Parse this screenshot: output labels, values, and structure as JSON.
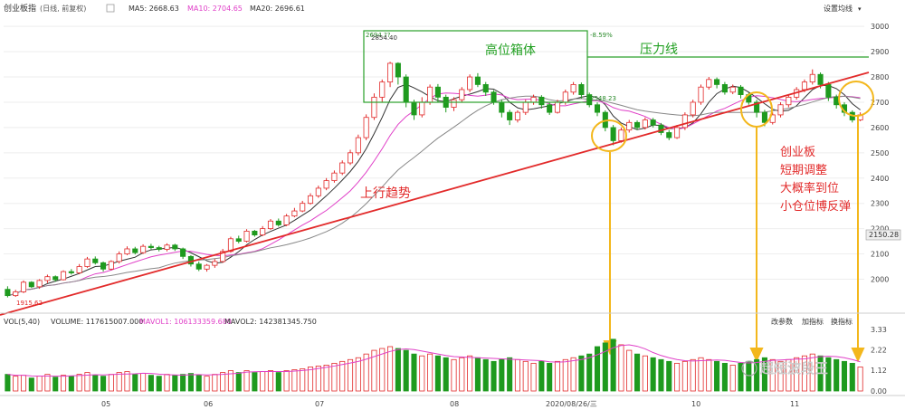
{
  "header": {
    "index_name": "创业板指",
    "period_tag": "(日线, 前复权)",
    "ma5": "MA5: 2668.63",
    "ma10": "MA10: 2704.65",
    "ma20": "MA20: 2696.61",
    "settings_label": "设置均线"
  },
  "volume_header": {
    "vol_title": "VOL(5,40)",
    "volume": "VOLUME: 117615007.000",
    "mavol1": "MAVOL1: 106133359.680",
    "mavol2": "MAVOL2: 142381345.750",
    "btn_params": "改参数",
    "btn_add": "加指标",
    "btn_switch": "换指标"
  },
  "annotations": {
    "box_label": "高位箱体",
    "resistance_label": "压力线",
    "trend_label": "上行趋势",
    "note_lines": [
      "创业板",
      "短期调整",
      "大概率到位",
      "小仓位博反弹"
    ],
    "box_top_price": "2854.40",
    "box_top_pct": "-8.59%",
    "box_corner_price": "2694.??",
    "low_price": "1915.62",
    "mid_low_price": "2548.23",
    "current_price": "2150.28"
  },
  "watermark": "超短波段王",
  "chart_data": {
    "type": "candlestick",
    "y_axis_price": [
      3000,
      2900,
      2800,
      2700,
      2600,
      2500,
      2400,
      2300,
      2200,
      2100,
      2000
    ],
    "ylim_price": [
      1880,
      3040
    ],
    "y_axis_volume": [
      "3.33",
      "2.22",
      "1.12",
      "0.00"
    ],
    "x_labels": [
      "05",
      "06",
      "07",
      "08",
      "2020/08/26/三",
      "10",
      "11"
    ],
    "candles": [
      [
        1960,
        1935,
        1972,
        1928
      ],
      [
        1935,
        1950,
        1958,
        1930
      ],
      [
        1950,
        1988,
        1995,
        1945
      ],
      [
        1988,
        1970,
        1992,
        1965
      ],
      [
        1970,
        1995,
        2000,
        1962
      ],
      [
        1995,
        2010,
        2018,
        1985
      ],
      [
        2010,
        1998,
        2015,
        1990
      ],
      [
        1998,
        2030,
        2035,
        1995
      ],
      [
        2030,
        2025,
        2040,
        2018
      ],
      [
        2025,
        2050,
        2060,
        2020
      ],
      [
        2050,
        2080,
        2088,
        2045
      ],
      [
        2080,
        2065,
        2090,
        2058
      ],
      [
        2065,
        2040,
        2070,
        2030
      ],
      [
        2040,
        2070,
        2075,
        2035
      ],
      [
        2070,
        2100,
        2110,
        2062
      ],
      [
        2100,
        2120,
        2130,
        2095
      ],
      [
        2120,
        2105,
        2128,
        2098
      ],
      [
        2105,
        2130,
        2138,
        2100
      ],
      [
        2130,
        2125,
        2140,
        2118
      ],
      [
        2125,
        2118,
        2132,
        2110
      ],
      [
        2118,
        2135,
        2142,
        2110
      ],
      [
        2135,
        2120,
        2140,
        2112
      ],
      [
        2120,
        2090,
        2125,
        2080
      ],
      [
        2090,
        2060,
        2095,
        2050
      ],
      [
        2060,
        2040,
        2070,
        2032
      ],
      [
        2040,
        2055,
        2060,
        2030
      ],
      [
        2055,
        2070,
        2080,
        2045
      ],
      [
        2070,
        2110,
        2120,
        2065
      ],
      [
        2110,
        2160,
        2168,
        2105
      ],
      [
        2160,
        2150,
        2172,
        2142
      ],
      [
        2150,
        2190,
        2198,
        2145
      ],
      [
        2190,
        2175,
        2195,
        2168
      ],
      [
        2175,
        2200,
        2210,
        2170
      ],
      [
        2200,
        2230,
        2238,
        2195
      ],
      [
        2230,
        2215,
        2240,
        2208
      ],
      [
        2215,
        2250,
        2258,
        2210
      ],
      [
        2250,
        2270,
        2282,
        2245
      ],
      [
        2270,
        2300,
        2310,
        2265
      ],
      [
        2300,
        2330,
        2340,
        2295
      ],
      [
        2330,
        2360,
        2370,
        2322
      ],
      [
        2360,
        2390,
        2400,
        2352
      ],
      [
        2390,
        2420,
        2430,
        2382
      ],
      [
        2420,
        2460,
        2470,
        2412
      ],
      [
        2460,
        2500,
        2512,
        2452
      ],
      [
        2500,
        2560,
        2572,
        2490
      ],
      [
        2560,
        2640,
        2652,
        2550
      ],
      [
        2640,
        2720,
        2735,
        2630
      ],
      [
        2720,
        2780,
        2790,
        2700
      ],
      [
        2780,
        2854,
        2860,
        2760
      ],
      [
        2854,
        2800,
        2858,
        2770
      ],
      [
        2800,
        2700,
        2810,
        2680
      ],
      [
        2700,
        2650,
        2710,
        2630
      ],
      [
        2650,
        2700,
        2720,
        2640
      ],
      [
        2700,
        2760,
        2770,
        2690
      ],
      [
        2760,
        2720,
        2772,
        2700
      ],
      [
        2720,
        2680,
        2730,
        2660
      ],
      [
        2680,
        2710,
        2720,
        2665
      ],
      [
        2710,
        2750,
        2760,
        2700
      ],
      [
        2750,
        2800,
        2810,
        2740
      ],
      [
        2800,
        2770,
        2815,
        2760
      ],
      [
        2770,
        2740,
        2780,
        2725
      ],
      [
        2740,
        2700,
        2748,
        2690
      ],
      [
        2700,
        2660,
        2710,
        2640
      ],
      [
        2660,
        2630,
        2670,
        2610
      ],
      [
        2630,
        2660,
        2668,
        2620
      ],
      [
        2660,
        2700,
        2710,
        2650
      ],
      [
        2700,
        2720,
        2730,
        2690
      ],
      [
        2720,
        2690,
        2728,
        2675
      ],
      [
        2690,
        2660,
        2700,
        2650
      ],
      [
        2660,
        2700,
        2710,
        2655
      ],
      [
        2700,
        2740,
        2750,
        2690
      ],
      [
        2740,
        2770,
        2780,
        2730
      ],
      [
        2770,
        2730,
        2778,
        2715
      ],
      [
        2730,
        2690,
        2738,
        2680
      ],
      [
        2690,
        2660,
        2700,
        2645
      ],
      [
        2660,
        2600,
        2668,
        2585
      ],
      [
        2600,
        2548,
        2610,
        2530
      ],
      [
        2548,
        2590,
        2600,
        2540
      ],
      [
        2590,
        2620,
        2630,
        2580
      ],
      [
        2620,
        2600,
        2628,
        2590
      ],
      [
        2600,
        2630,
        2640,
        2592
      ],
      [
        2630,
        2610,
        2638,
        2600
      ],
      [
        2610,
        2580,
        2618,
        2570
      ],
      [
        2580,
        2560,
        2590,
        2550
      ],
      [
        2560,
        2600,
        2610,
        2555
      ],
      [
        2600,
        2650,
        2660,
        2590
      ],
      [
        2650,
        2700,
        2710,
        2640
      ],
      [
        2700,
        2760,
        2770,
        2690
      ],
      [
        2760,
        2790,
        2800,
        2750
      ],
      [
        2790,
        2770,
        2798,
        2755
      ],
      [
        2770,
        2740,
        2780,
        2730
      ],
      [
        2740,
        2760,
        2770,
        2732
      ],
      [
        2760,
        2730,
        2768,
        2715
      ],
      [
        2730,
        2700,
        2738,
        2690
      ],
      [
        2700,
        2660,
        2710,
        2640
      ],
      [
        2660,
        2620,
        2670,
        2605
      ],
      [
        2620,
        2650,
        2660,
        2612
      ],
      [
        2650,
        2690,
        2700,
        2640
      ],
      [
        2690,
        2720,
        2730,
        2680
      ],
      [
        2720,
        2750,
        2760,
        2710
      ],
      [
        2750,
        2780,
        2790,
        2740
      ],
      [
        2780,
        2810,
        2830,
        2770
      ],
      [
        2810,
        2770,
        2818,
        2755
      ],
      [
        2770,
        2720,
        2780,
        2705
      ],
      [
        2720,
        2690,
        2730,
        2675
      ],
      [
        2690,
        2660,
        2700,
        2645
      ],
      [
        2660,
        2630,
        2668,
        2620
      ],
      [
        2630,
        2650,
        2660,
        2625
      ]
    ],
    "volume": [
      0.9,
      0.8,
      0.85,
      0.7,
      0.8,
      0.9,
      0.75,
      0.85,
      0.8,
      0.9,
      1.0,
      0.85,
      0.8,
      0.9,
      1.0,
      1.05,
      0.9,
      0.95,
      0.85,
      0.8,
      0.9,
      0.85,
      0.9,
      0.95,
      0.85,
      0.8,
      0.9,
      1.0,
      1.1,
      1.0,
      1.1,
      1.0,
      1.05,
      1.1,
      1.0,
      1.1,
      1.15,
      1.2,
      1.3,
      1.35,
      1.4,
      1.5,
      1.6,
      1.7,
      1.8,
      2.0,
      2.2,
      2.3,
      2.4,
      2.3,
      2.2,
      2.0,
      1.9,
      2.0,
      1.9,
      1.8,
      1.7,
      1.8,
      1.9,
      1.8,
      1.7,
      1.6,
      1.7,
      1.8,
      1.7,
      1.6,
      1.5,
      1.6,
      1.5,
      1.6,
      1.7,
      1.8,
      1.9,
      2.0,
      2.4,
      2.6,
      2.8,
      2.5,
      2.2,
      2.0,
      1.9,
      1.8,
      1.7,
      1.6,
      1.5,
      1.6,
      1.7,
      1.8,
      1.7,
      1.6,
      1.5,
      1.4,
      1.5,
      1.6,
      1.7,
      1.8,
      1.7,
      1.6,
      1.7,
      1.8,
      1.9,
      2.0,
      1.9,
      1.8,
      1.7,
      1.6,
      1.5,
      1.3
    ]
  }
}
